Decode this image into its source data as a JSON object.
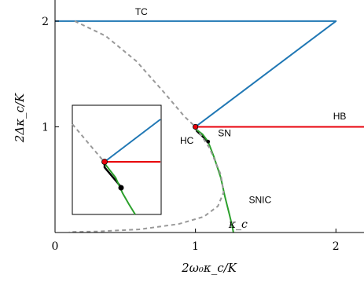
{
  "chart_data": {
    "type": "line",
    "title": "",
    "xlabel": "2ω₀κ_c/K",
    "ylabel": "2Δκ_c/K",
    "xlim": [
      0,
      2.2
    ],
    "ylim": [
      0,
      2.2
    ],
    "x_ticks": [
      {
        "value": 0,
        "label": "0"
      },
      {
        "value": 1,
        "label": "1"
      },
      {
        "value": 2,
        "label": "2"
      }
    ],
    "x_extra_tick": {
      "value": 1.27,
      "label": "κ_c"
    },
    "y_ticks": [
      {
        "value": 1,
        "label": "1"
      },
      {
        "value": 2,
        "label": "2"
      }
    ],
    "grid": false,
    "colors": {
      "TC": "#1f77b4",
      "HB": "#e8000b",
      "SNIC": "#2ca02c",
      "SN": "#000000",
      "dashed": "#999999"
    },
    "series": [
      {
        "name": "TC",
        "style": "solid",
        "x": [
          0,
          2,
          1
        ],
        "y": [
          2,
          2,
          1
        ]
      },
      {
        "name": "HB",
        "style": "solid",
        "x": [
          1,
          2.2
        ],
        "y": [
          1,
          1
        ]
      },
      {
        "name": "SN",
        "style": "solid",
        "x": [
          1,
          1.01,
          1.05,
          1.09
        ],
        "y": [
          1,
          0.96,
          0.91,
          0.86
        ]
      },
      {
        "name": "SNIC",
        "style": "solid",
        "x": [
          1.0,
          1.05,
          1.09,
          1.13,
          1.18,
          1.21,
          1.24,
          1.26,
          1.27
        ],
        "y": [
          0.98,
          0.93,
          0.86,
          0.72,
          0.52,
          0.34,
          0.18,
          0.07,
          0.0
        ]
      },
      {
        "style": "dashed",
        "x": [
          0.14,
          0.36,
          0.58,
          0.78,
          0.92,
          1.0,
          1.1,
          1.18,
          1.2,
          1.16,
          1.06,
          0.88,
          0.6,
          0.3,
          0.1
        ],
        "y": [
          2.0,
          1.86,
          1.62,
          1.32,
          1.1,
          1.0,
          0.8,
          0.55,
          0.38,
          0.25,
          0.15,
          0.08,
          0.03,
          0.01,
          0.005
        ]
      }
    ],
    "points": [
      {
        "x": 1.0,
        "y": 1.0,
        "color": "#e8000b"
      },
      {
        "x": 1.09,
        "y": 0.86,
        "color": "#000000"
      }
    ],
    "annotations": [
      {
        "text": "TC",
        "x": 0.57,
        "y": 2.06
      },
      {
        "text": "HB",
        "x": 1.98,
        "y": 1.07
      },
      {
        "text": "SN",
        "x": 1.16,
        "y": 0.91
      },
      {
        "text": "HC",
        "x": 0.89,
        "y": 0.84
      },
      {
        "text": "SNIC",
        "x": 1.38,
        "y": 0.28
      }
    ]
  }
}
